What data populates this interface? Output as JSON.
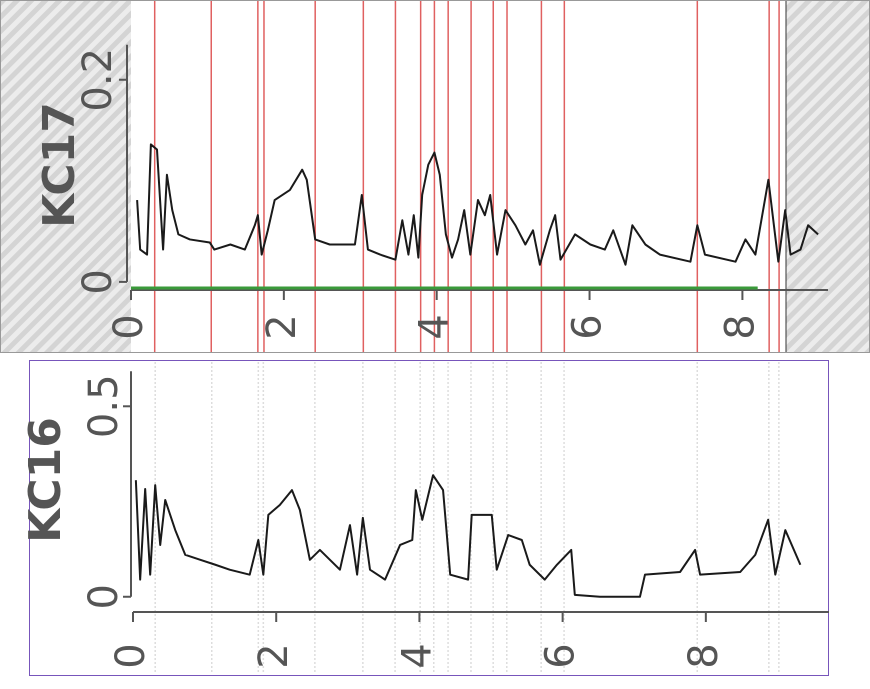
{
  "chart_data": [
    {
      "type": "line",
      "ylabel": "KC17",
      "color": "#1a1a1a",
      "xlim": [
        0,
        9.12
      ],
      "ylim": [
        -0.01,
        0.27
      ],
      "xticks": [
        0,
        2,
        4,
        6,
        8
      ],
      "yticks": [
        0,
        0.2
      ],
      "x": [
        0.08,
        0.12,
        0.21,
        0.26,
        0.34,
        0.42,
        0.47,
        0.54,
        0.62,
        0.77,
        1.03,
        1.09,
        1.3,
        1.49,
        1.62,
        1.66,
        1.71,
        1.79,
        1.88,
        2.08,
        2.24,
        2.3,
        2.41,
        2.6,
        2.93,
        3.02,
        3.1,
        3.26,
        3.46,
        3.55,
        3.63,
        3.7,
        3.76,
        3.81,
        3.89,
        3.97,
        4.04,
        4.12,
        4.2,
        4.28,
        4.36,
        4.44,
        4.54,
        4.63,
        4.7,
        4.79,
        4.9,
        5.03,
        5.16,
        5.26,
        5.35,
        5.48,
        5.55,
        5.62,
        5.81,
        6.01,
        6.2,
        6.31,
        6.47,
        6.56,
        6.73,
        6.92,
        7.32,
        7.41,
        7.51,
        7.91,
        8.04,
        8.17,
        8.34,
        8.47,
        8.56,
        8.63,
        8.76,
        8.86,
        8.99
      ],
      "values": [
        0.081,
        0.032,
        0.027,
        0.136,
        0.131,
        0.032,
        0.106,
        0.071,
        0.047,
        0.042,
        0.039,
        0.032,
        0.037,
        0.032,
        0.056,
        0.066,
        0.027,
        0.051,
        0.081,
        0.091,
        0.111,
        0.101,
        0.042,
        0.037,
        0.037,
        0.086,
        0.032,
        0.027,
        0.022,
        0.061,
        0.027,
        0.066,
        0.024,
        0.086,
        0.116,
        0.128,
        0.106,
        0.047,
        0.024,
        0.042,
        0.071,
        0.027,
        0.081,
        0.066,
        0.086,
        0.027,
        0.071,
        0.056,
        0.037,
        0.051,
        0.017,
        0.051,
        0.066,
        0.022,
        0.047,
        0.037,
        0.032,
        0.051,
        0.017,
        0.056,
        0.037,
        0.027,
        0.02,
        0.056,
        0.027,
        0.02,
        0.042,
        0.027,
        0.101,
        0.02,
        0.071,
        0.027,
        0.032,
        0.056,
        0.047
      ],
      "markers": {
        "color": "#e06060",
        "x": [
          0.31,
          1.05,
          1.66,
          1.74,
          2.41,
          3.04,
          3.46,
          3.79,
          3.97,
          4.15,
          4.45,
          4.74,
          4.92,
          5.37,
          5.67,
          7.41,
          8.35,
          8.48
        ]
      },
      "range_line": {
        "color": "#3a9a3a",
        "x": [
          0,
          8.2
        ],
        "y": -0.006
      }
    },
    {
      "type": "line",
      "ylabel": "KC16",
      "color": "#1a1a1a",
      "xlim": [
        0,
        9.72
      ],
      "ylim": [
        -0.04,
        0.59
      ],
      "xticks": [
        0,
        2,
        4,
        6,
        8
      ],
      "yticks": [
        0,
        0.5
      ],
      "x": [
        0.04,
        0.1,
        0.17,
        0.24,
        0.31,
        0.38,
        0.45,
        0.59,
        0.73,
        0.94,
        1.15,
        1.35,
        1.63,
        1.75,
        1.82,
        1.89,
        2.05,
        2.22,
        2.33,
        2.47,
        2.61,
        2.89,
        3.03,
        3.13,
        3.21,
        3.31,
        3.52,
        3.73,
        3.9,
        3.95,
        4.04,
        4.19,
        4.33,
        4.43,
        4.68,
        4.73,
        5.01,
        5.08,
        5.24,
        5.43,
        5.54,
        5.75,
        5.92,
        6.12,
        6.17,
        6.52,
        7.08,
        7.15,
        7.64,
        7.85,
        7.92,
        8.48,
        8.69,
        8.87,
        8.97,
        9.11,
        9.32
      ],
      "values": [
        0.306,
        0.045,
        0.283,
        0.058,
        0.293,
        0.136,
        0.254,
        0.175,
        0.11,
        0.097,
        0.084,
        0.071,
        0.058,
        0.149,
        0.058,
        0.215,
        0.241,
        0.28,
        0.228,
        0.097,
        0.123,
        0.071,
        0.188,
        0.058,
        0.207,
        0.071,
        0.045,
        0.136,
        0.149,
        0.28,
        0.202,
        0.319,
        0.28,
        0.058,
        0.045,
        0.215,
        0.215,
        0.071,
        0.162,
        0.149,
        0.084,
        0.045,
        0.084,
        0.123,
        0.005,
        0,
        0,
        0.058,
        0.065,
        0.123,
        0.058,
        0.065,
        0.11,
        0.202,
        0.058,
        0.175,
        0.084
      ],
      "markers": {
        "color": "#dddddd",
        "x": [
          0.31,
          1.1,
          1.75,
          1.82,
          2.54,
          3.21,
          3.66,
          4.01,
          4.2,
          4.4,
          4.72,
          5.03,
          5.22,
          5.7,
          6.02,
          7.88,
          8.88,
          9.02
        ]
      }
    }
  ]
}
